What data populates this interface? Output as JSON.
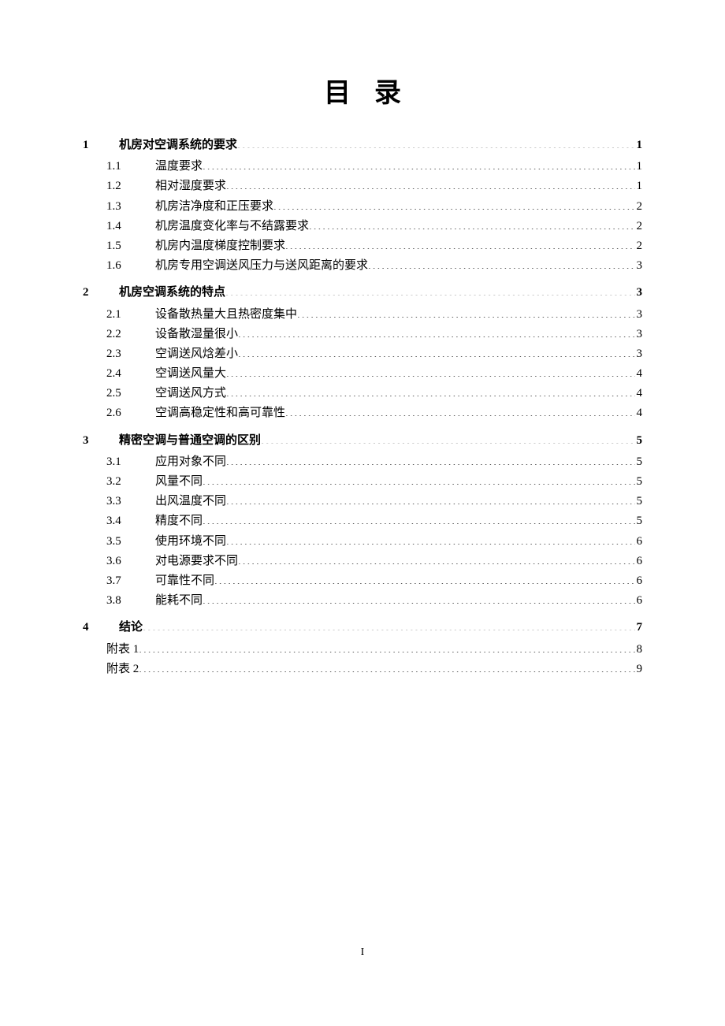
{
  "title": "目录",
  "page_number": "I",
  "typography": {
    "title_fontsize": 34,
    "body_fontsize": 15,
    "line_height": 1.68,
    "text_color": "#000000",
    "background_color": "#ffffff"
  },
  "sections": [
    {
      "num": "1",
      "label": "机房对空调系统的要求",
      "page": "1",
      "items": [
        {
          "num": "1.1",
          "label": "温度要求",
          "page": "1"
        },
        {
          "num": "1.2",
          "label": "相对湿度要求",
          "page": "1"
        },
        {
          "num": "1.3",
          "label": "机房洁净度和正压要求",
          "page": "2"
        },
        {
          "num": "1.4",
          "label": "机房温度变化率与不结露要求",
          "page": "2"
        },
        {
          "num": "1.5",
          "label": "机房内温度梯度控制要求",
          "page": "2"
        },
        {
          "num": "1.6",
          "label": "机房专用空调送风压力与送风距离的要求",
          "page": "3"
        }
      ]
    },
    {
      "num": "2",
      "label": "机房空调系统的特点",
      "page": "3",
      "items": [
        {
          "num": "2.1",
          "label": "设备散热量大且热密度集中",
          "page": "3"
        },
        {
          "num": "2.2",
          "label": "设备散湿量很小",
          "page": "3"
        },
        {
          "num": "2.3",
          "label": "空调送风焓差小",
          "page": "3"
        },
        {
          "num": "2.4",
          "label": "空调送风量大",
          "page": "4"
        },
        {
          "num": "2.5",
          "label": "空调送风方式",
          "page": "4"
        },
        {
          "num": "2.6",
          "label": "空调高稳定性和高可靠性",
          "page": "4"
        }
      ]
    },
    {
      "num": "3",
      "label": "精密空调与普通空调的区别",
      "page": "5",
      "items": [
        {
          "num": "3.1",
          "label": "应用对象不同",
          "page": "5"
        },
        {
          "num": "3.2",
          "label": "风量不同",
          "page": "5"
        },
        {
          "num": "3.3",
          "label": "出风温度不同",
          "page": "5"
        },
        {
          "num": "3.4",
          "label": "精度不同",
          "page": "5"
        },
        {
          "num": "3.5",
          "label": "使用环境不同",
          "page": "6"
        },
        {
          "num": "3.6",
          "label": "对电源要求不同",
          "page": "6"
        },
        {
          "num": "3.7",
          "label": "可靠性不同",
          "page": "6"
        },
        {
          "num": "3.8",
          "label": "能耗不同",
          "page": "6"
        }
      ]
    },
    {
      "num": "4",
      "label": "结论",
      "page": "7",
      "items": []
    }
  ],
  "appendices": [
    {
      "label": "附表 1",
      "page": "8"
    },
    {
      "label": "附表 2",
      "page": "9"
    }
  ]
}
